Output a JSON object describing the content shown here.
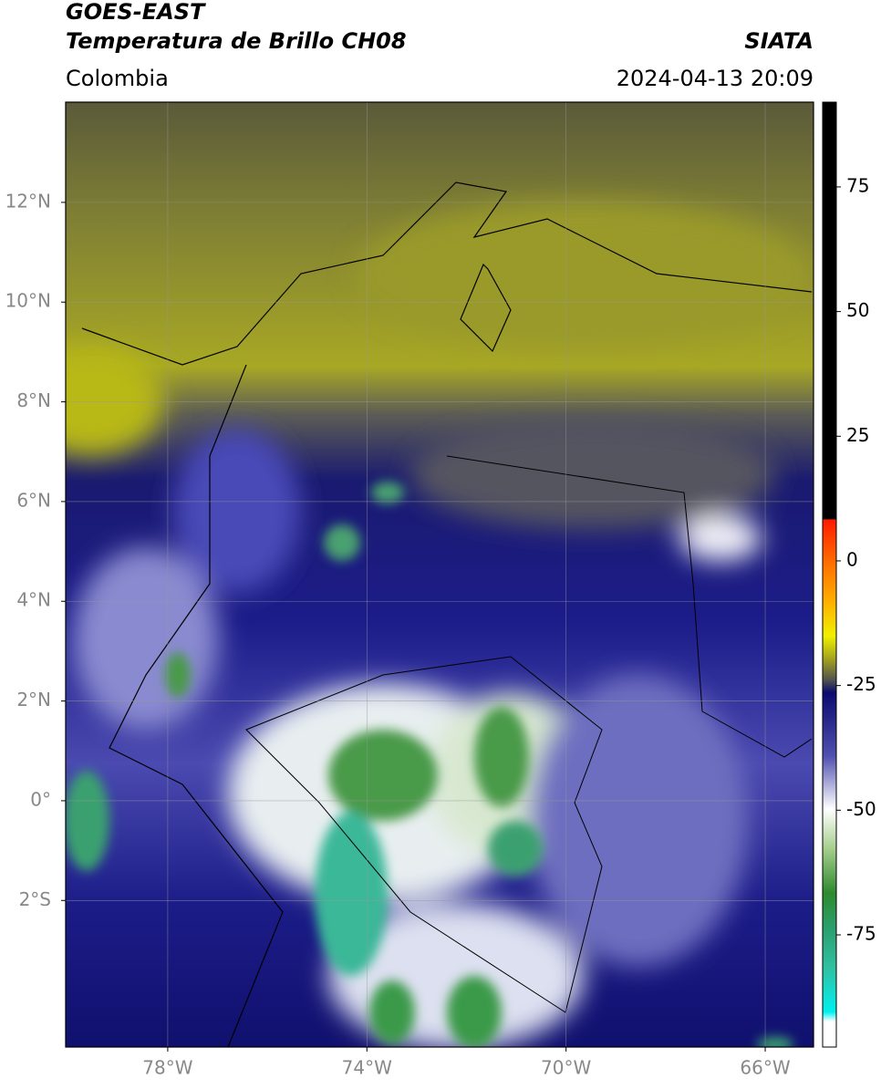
{
  "header": {
    "title": "GOES-EAST",
    "subtitle": "Temperatura de Brillo CH08",
    "source": "SIATA",
    "region": "Colombia",
    "datetime": "2024-04-13 20:09"
  },
  "map": {
    "lonlim": [
      -80.05,
      -65.03
    ],
    "latlim": [
      -4.94,
      14.01
    ],
    "lonticks": [
      {
        "value": -78,
        "label": "78°W"
      },
      {
        "value": -74,
        "label": "74°W"
      },
      {
        "value": -70,
        "label": "70°W"
      },
      {
        "value": -66,
        "label": "66°W"
      }
    ],
    "latticks": [
      {
        "value": 12,
        "label": "12°N"
      },
      {
        "value": 10,
        "label": "10°N"
      },
      {
        "value": 8,
        "label": "8°N"
      },
      {
        "value": 6,
        "label": "6°N"
      },
      {
        "value": 4,
        "label": "4°N"
      },
      {
        "value": 2,
        "label": "2°N"
      },
      {
        "value": 0,
        "label": "0°"
      },
      {
        "value": -2,
        "label": "2°S"
      }
    ],
    "grid": true
  },
  "colorbar": {
    "clim": [
      -97.5,
      92
    ],
    "ticks": [
      75,
      50,
      25,
      0,
      -25,
      -50,
      -75
    ]
  }
}
